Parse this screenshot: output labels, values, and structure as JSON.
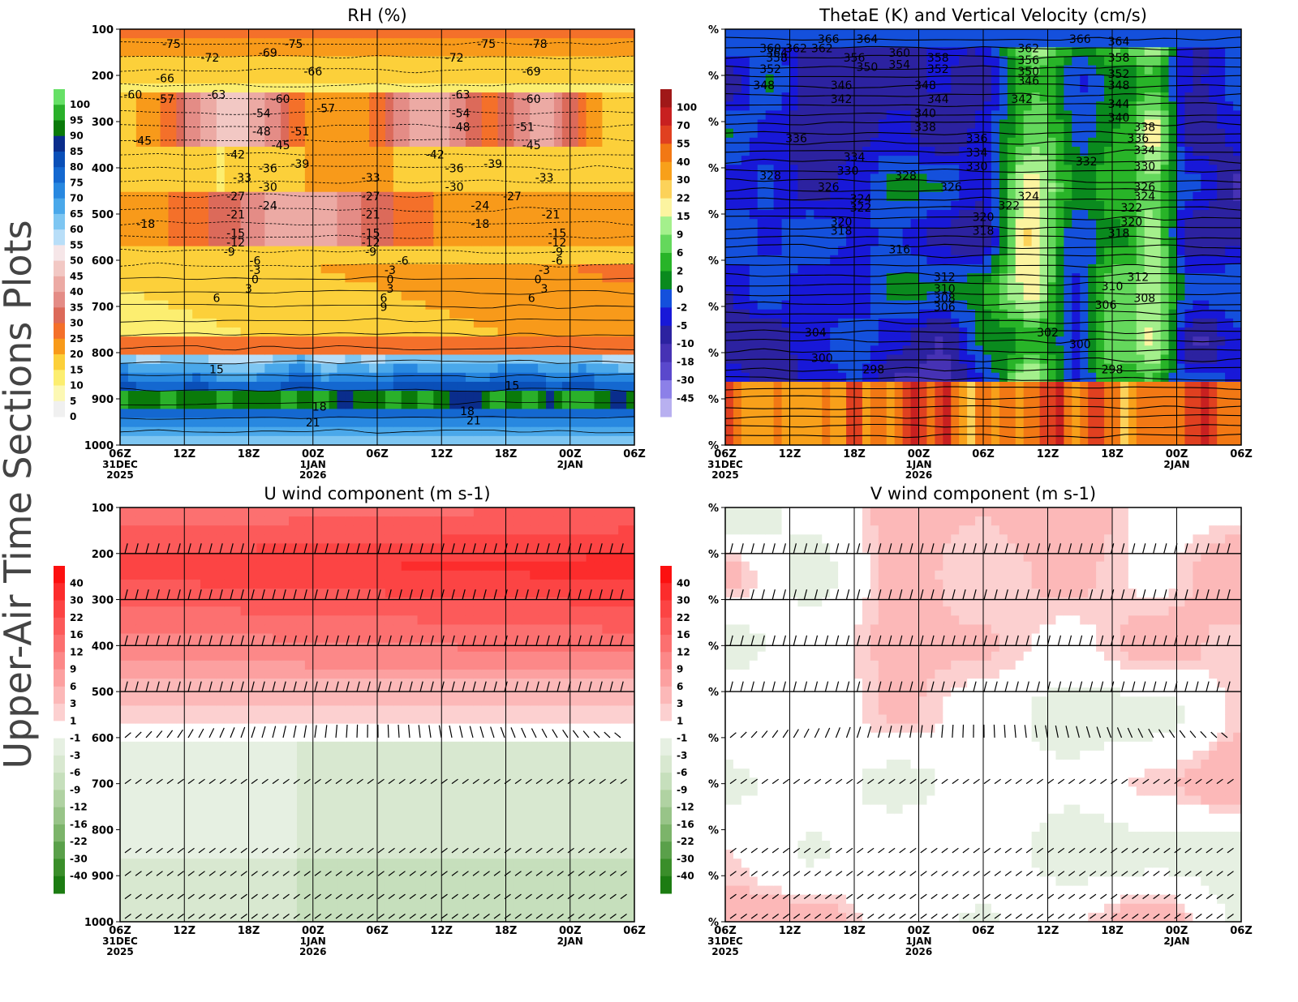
{
  "page": {
    "side_title": "Upper-Air Time Sections Plots",
    "axis_label_color": "#000000",
    "background": "#ffffff"
  },
  "time_axis": {
    "ticks": [
      {
        "label": "06Z",
        "sub1": "31DEC",
        "sub2": "2025"
      },
      {
        "label": "12Z",
        "sub1": "",
        "sub2": ""
      },
      {
        "label": "18Z",
        "sub1": "",
        "sub2": ""
      },
      {
        "label": "00Z",
        "sub1": "1JAN",
        "sub2": "2026"
      },
      {
        "label": "06Z",
        "sub1": "",
        "sub2": ""
      },
      {
        "label": "12Z",
        "sub1": "",
        "sub2": ""
      },
      {
        "label": "18Z",
        "sub1": "",
        "sub2": ""
      },
      {
        "label": "00Z",
        "sub1": "2JAN",
        "sub2": ""
      },
      {
        "label": "06Z",
        "sub1": "",
        "sub2": ""
      }
    ]
  },
  "chart_data": [
    {
      "type": "heatmap",
      "title": "RH (%)",
      "y_ticks": [
        "100",
        "200",
        "300",
        "400",
        "500",
        "600",
        "700",
        "800",
        "900",
        "1000"
      ],
      "ylim": [
        100,
        1000
      ],
      "colorbar": {
        "labels": [
          "100",
          "95",
          "90",
          "85",
          "80",
          "75",
          "70",
          "65",
          "60",
          "55",
          "50",
          "45",
          "40",
          "35",
          "30",
          "25",
          "20",
          "15",
          "10",
          "5",
          "0"
        ],
        "colors": [
          "#66e066",
          "#2ab02a",
          "#0a7a0a",
          "#0a2d8c",
          "#0a4fb8",
          "#1468d0",
          "#2888e0",
          "#4aa8ea",
          "#7ec6f2",
          "#b8def8",
          "#f6e6e8",
          "#f2c8c4",
          "#ecaaa4",
          "#e48c86",
          "#dc6a5a",
          "#f4702a",
          "#f89a1a",
          "#fcd03a",
          "#fcee70",
          "#fcf8b4",
          "#f0f0f0"
        ]
      },
      "temp_contour_labels": [
        {
          "t": 0.3,
          "p": 140,
          "v": "-75"
        },
        {
          "t": 0.9,
          "p": 170,
          "v": "-72"
        },
        {
          "t": 1.8,
          "p": 160,
          "v": "-69"
        },
        {
          "t": 2.2,
          "p": 140,
          "v": "-75"
        },
        {
          "t": 0.2,
          "p": 215,
          "v": "-66"
        },
        {
          "t": 2.5,
          "p": 200,
          "v": "-66"
        },
        {
          "t": 4.7,
          "p": 170,
          "v": "-72"
        },
        {
          "t": 5.2,
          "p": 140,
          "v": "-75"
        },
        {
          "t": 5.9,
          "p": 200,
          "v": "-69"
        },
        {
          "t": 6.0,
          "p": 140,
          "v": "-78"
        },
        {
          "t": -0.3,
          "p": 250,
          "v": "-60"
        },
        {
          "t": 0.2,
          "p": 260,
          "v": "-57"
        },
        {
          "t": 1.0,
          "p": 250,
          "v": "-63"
        },
        {
          "t": 2.0,
          "p": 260,
          "v": "-60"
        },
        {
          "t": 2.7,
          "p": 280,
          "v": "-57"
        },
        {
          "t": 4.8,
          "p": 250,
          "v": "-63"
        },
        {
          "t": 5.9,
          "p": 260,
          "v": "-60"
        },
        {
          "t": 1.7,
          "p": 290,
          "v": "-54"
        },
        {
          "t": 1.7,
          "p": 330,
          "v": "-48"
        },
        {
          "t": 2.3,
          "p": 330,
          "v": "-51"
        },
        {
          "t": 2.0,
          "p": 360,
          "v": "-45"
        },
        {
          "t": 4.8,
          "p": 290,
          "v": "-54"
        },
        {
          "t": 4.8,
          "p": 320,
          "v": "-48"
        },
        {
          "t": 5.8,
          "p": 320,
          "v": "-51"
        },
        {
          "t": 5.9,
          "p": 360,
          "v": "-45"
        },
        {
          "t": -0.15,
          "p": 350,
          "v": "-45"
        },
        {
          "t": 1.3,
          "p": 380,
          "v": "-42"
        },
        {
          "t": 4.4,
          "p": 380,
          "v": "-42"
        },
        {
          "t": 2.3,
          "p": 400,
          "v": "-39"
        },
        {
          "t": 1.8,
          "p": 410,
          "v": "-36"
        },
        {
          "t": 5.3,
          "p": 400,
          "v": "-39"
        },
        {
          "t": 4.7,
          "p": 410,
          "v": "-36"
        },
        {
          "t": 6.1,
          "p": 430,
          "v": "-33"
        },
        {
          "t": 1.4,
          "p": 430,
          "v": "-33"
        },
        {
          "t": 3.4,
          "p": 430,
          "v": "-33"
        },
        {
          "t": 1.8,
          "p": 450,
          "v": "-30"
        },
        {
          "t": 4.7,
          "p": 450,
          "v": "-30"
        },
        {
          "t": 1.3,
          "p": 470,
          "v": "-27"
        },
        {
          "t": 3.4,
          "p": 470,
          "v": "-27"
        },
        {
          "t": 5.6,
          "p": 470,
          "v": "-27"
        },
        {
          "t": 1.8,
          "p": 490,
          "v": "-24"
        },
        {
          "t": 5.1,
          "p": 490,
          "v": "-24"
        },
        {
          "t": 1.3,
          "p": 510,
          "v": "-21"
        },
        {
          "t": 3.4,
          "p": 510,
          "v": "-21"
        },
        {
          "t": 6.2,
          "p": 510,
          "v": "-21"
        },
        {
          "t": -0.1,
          "p": 530,
          "v": "-18"
        },
        {
          "t": 5.1,
          "p": 530,
          "v": "-18"
        },
        {
          "t": 1.3,
          "p": 550,
          "v": "-15"
        },
        {
          "t": 3.4,
          "p": 550,
          "v": "-15"
        },
        {
          "t": 6.3,
          "p": 550,
          "v": "-15"
        },
        {
          "t": 1.3,
          "p": 570,
          "v": "-12"
        },
        {
          "t": 3.4,
          "p": 570,
          "v": "-12"
        },
        {
          "t": 6.3,
          "p": 570,
          "v": "-12"
        },
        {
          "t": 1.2,
          "p": 590,
          "v": "-9"
        },
        {
          "t": 3.4,
          "p": 590,
          "v": "-9"
        },
        {
          "t": 6.3,
          "p": 590,
          "v": "-9"
        },
        {
          "t": 1.6,
          "p": 610,
          "v": "-6"
        },
        {
          "t": 3.9,
          "p": 610,
          "v": "-6"
        },
        {
          "t": 6.3,
          "p": 610,
          "v": "-6"
        },
        {
          "t": 1.6,
          "p": 630,
          "v": "-3"
        },
        {
          "t": 3.7,
          "p": 630,
          "v": "-3"
        },
        {
          "t": 6.1,
          "p": 630,
          "v": "-3"
        },
        {
          "t": 1.6,
          "p": 650,
          "v": "0"
        },
        {
          "t": 3.7,
          "p": 650,
          "v": "0"
        },
        {
          "t": 6.0,
          "p": 650,
          "v": "0"
        },
        {
          "t": 1.5,
          "p": 670,
          "v": "3"
        },
        {
          "t": 3.7,
          "p": 670,
          "v": "3"
        },
        {
          "t": 6.1,
          "p": 670,
          "v": "3"
        },
        {
          "t": 1.0,
          "p": 690,
          "v": "6"
        },
        {
          "t": 3.6,
          "p": 690,
          "v": "6"
        },
        {
          "t": 5.9,
          "p": 690,
          "v": "6"
        },
        {
          "t": 3.6,
          "p": 710,
          "v": "9"
        },
        {
          "t": 1.0,
          "p": 845,
          "v": "15"
        },
        {
          "t": 5.6,
          "p": 880,
          "v": "15"
        },
        {
          "t": 2.6,
          "p": 925,
          "v": "18"
        },
        {
          "t": 4.9,
          "p": 935,
          "v": "18"
        },
        {
          "t": 2.5,
          "p": 960,
          "v": "21"
        },
        {
          "t": 5.0,
          "p": 955,
          "v": "21"
        }
      ]
    },
    {
      "type": "heatmap",
      "title": "ThetaE (K) and Vertical Velocity (cm/s)",
      "y_ticks": [
        "%",
        "%",
        "%",
        "%",
        "%",
        "%",
        "%",
        "%",
        "%",
        "%"
      ],
      "ylim": [
        100,
        1000
      ],
      "colorbar": {
        "labels": [
          "100",
          "70",
          "55",
          "40",
          "30",
          "22",
          "15",
          "9",
          "6",
          "2",
          "0",
          "-2",
          "-5",
          "-10",
          "-18",
          "-30",
          "-45"
        ],
        "colors": [
          "#a01818",
          "#c82020",
          "#e04020",
          "#f27814",
          "#f8a01a",
          "#fcd25a",
          "#fcf4a0",
          "#a4f08c",
          "#64d85c",
          "#28b428",
          "#0a8a1e",
          "#1450dc",
          "#1818d8",
          "#2c22a0",
          "#4632b4",
          "#5a48cc",
          "#8c80e8",
          "#b8b0f0"
        ]
      },
      "thetae_labels": [
        {
          "t": 1.1,
          "p": 130,
          "v": "366"
        },
        {
          "t": 1.7,
          "p": 130,
          "v": "364"
        },
        {
          "t": 0.2,
          "p": 150,
          "v": "360"
        },
        {
          "t": 0.6,
          "p": 150,
          "v": "362"
        },
        {
          "t": 0.3,
          "p": 160,
          "v": "364"
        },
        {
          "t": 0.3,
          "p": 170,
          "v": "358"
        },
        {
          "t": 1.0,
          "p": 150,
          "v": "362"
        },
        {
          "t": 1.5,
          "p": 170,
          "v": "356"
        },
        {
          "t": 1.7,
          "p": 190,
          "v": "350"
        },
        {
          "t": 2.2,
          "p": 160,
          "v": "360"
        },
        {
          "t": 2.2,
          "p": 185,
          "v": "354"
        },
        {
          "t": 2.8,
          "p": 170,
          "v": "358"
        },
        {
          "t": 2.8,
          "p": 195,
          "v": "352"
        },
        {
          "t": 2.6,
          "p": 230,
          "v": "348"
        },
        {
          "t": 4.2,
          "p": 150,
          "v": "362"
        },
        {
          "t": 5.0,
          "p": 130,
          "v": "366"
        },
        {
          "t": 5.6,
          "p": 135,
          "v": "364"
        },
        {
          "t": 4.2,
          "p": 175,
          "v": "356"
        },
        {
          "t": 5.6,
          "p": 170,
          "v": "358"
        },
        {
          "t": 4.2,
          "p": 200,
          "v": "350"
        },
        {
          "t": 5.6,
          "p": 205,
          "v": "352"
        },
        {
          "t": 4.2,
          "p": 220,
          "v": "346"
        },
        {
          "t": 5.6,
          "p": 230,
          "v": "348"
        },
        {
          "t": 4.1,
          "p": 260,
          "v": "342"
        },
        {
          "t": 5.6,
          "p": 270,
          "v": "344"
        },
        {
          "t": 5.6,
          "p": 300,
          "v": "340"
        },
        {
          "t": 0.2,
          "p": 195,
          "v": "352"
        },
        {
          "t": 0.1,
          "p": 230,
          "v": "348"
        },
        {
          "t": 1.3,
          "p": 230,
          "v": "346"
        },
        {
          "t": 1.3,
          "p": 260,
          "v": "342"
        },
        {
          "t": 2.8,
          "p": 260,
          "v": "344"
        },
        {
          "t": 2.6,
          "p": 290,
          "v": "340"
        },
        {
          "t": 2.6,
          "p": 320,
          "v": "338"
        },
        {
          "t": 6.0,
          "p": 320,
          "v": "338"
        },
        {
          "t": 5.9,
          "p": 345,
          "v": "336"
        },
        {
          "t": 6.0,
          "p": 370,
          "v": "334"
        },
        {
          "t": 6.0,
          "p": 405,
          "v": "330"
        },
        {
          "t": 0.6,
          "p": 345,
          "v": "336"
        },
        {
          "t": 1.5,
          "p": 385,
          "v": "334"
        },
        {
          "t": 1.4,
          "p": 415,
          "v": "330"
        },
        {
          "t": 3.4,
          "p": 345,
          "v": "336"
        },
        {
          "t": 3.4,
          "p": 375,
          "v": "334"
        },
        {
          "t": 3.4,
          "p": 405,
          "v": "330"
        },
        {
          "t": 5.1,
          "p": 395,
          "v": "332"
        },
        {
          "t": 0.2,
          "p": 425,
          "v": "328"
        },
        {
          "t": 2.3,
          "p": 425,
          "v": "328"
        },
        {
          "t": 1.1,
          "p": 450,
          "v": "326"
        },
        {
          "t": 3.0,
          "p": 450,
          "v": "326"
        },
        {
          "t": 6.0,
          "p": 450,
          "v": "326"
        },
        {
          "t": 1.6,
          "p": 475,
          "v": "324"
        },
        {
          "t": 4.2,
          "p": 470,
          "v": "324"
        },
        {
          "t": 6.0,
          "p": 470,
          "v": "324"
        },
        {
          "t": 1.6,
          "p": 495,
          "v": "322"
        },
        {
          "t": 3.9,
          "p": 490,
          "v": "322"
        },
        {
          "t": 5.8,
          "p": 495,
          "v": "322"
        },
        {
          "t": 1.3,
          "p": 525,
          "v": "320"
        },
        {
          "t": 3.5,
          "p": 515,
          "v": "320"
        },
        {
          "t": 5.8,
          "p": 525,
          "v": "320"
        },
        {
          "t": 1.3,
          "p": 545,
          "v": "318"
        },
        {
          "t": 3.5,
          "p": 545,
          "v": "318"
        },
        {
          "t": 5.6,
          "p": 550,
          "v": "318"
        },
        {
          "t": 2.2,
          "p": 585,
          "v": "316"
        },
        {
          "t": 2.9,
          "p": 645,
          "v": "312"
        },
        {
          "t": 5.9,
          "p": 645,
          "v": "312"
        },
        {
          "t": 2.9,
          "p": 670,
          "v": "310"
        },
        {
          "t": 5.5,
          "p": 665,
          "v": "310"
        },
        {
          "t": 2.9,
          "p": 690,
          "v": "308"
        },
        {
          "t": 6.0,
          "p": 690,
          "v": "308"
        },
        {
          "t": 2.9,
          "p": 710,
          "v": "306"
        },
        {
          "t": 5.4,
          "p": 705,
          "v": "306"
        },
        {
          "t": 0.9,
          "p": 765,
          "v": "304"
        },
        {
          "t": 4.5,
          "p": 765,
          "v": "302"
        },
        {
          "t": 5.0,
          "p": 790,
          "v": "300"
        },
        {
          "t": 1.0,
          "p": 820,
          "v": "300"
        },
        {
          "t": 1.8,
          "p": 845,
          "v": "298"
        },
        {
          "t": 5.5,
          "p": 845,
          "v": "298"
        }
      ]
    },
    {
      "type": "heatmap",
      "title": "U wind component (m s-1)",
      "y_ticks": [
        "100",
        "200",
        "300",
        "400",
        "500",
        "600",
        "700",
        "800",
        "900",
        "1000"
      ],
      "ylim": [
        100,
        1000
      ],
      "colorbar": {
        "labels": [
          "40",
          "30",
          "22",
          "16",
          "12",
          "9",
          "6",
          "3",
          "1",
          "-1",
          "-3",
          "-6",
          "-9",
          "-12",
          "-16",
          "-22",
          "-30",
          "-40"
        ],
        "colors": [
          "#fc1010",
          "#fc2c2c",
          "#fc4444",
          "#fc5a5a",
          "#fc7070",
          "#fc8888",
          "#fca0a0",
          "#fcb8b8",
          "#fcd0d0",
          "#ffffff",
          "#e6f0e2",
          "#d8e8d0",
          "#c6dfbc",
          "#b0d2a2",
          "#98c488",
          "#7cb46a",
          "#5aa04a",
          "#3a8e2a",
          "#1c7c12"
        ]
      }
    },
    {
      "type": "heatmap",
      "title": "V wind component (m s-1)",
      "y_ticks": [
        "%",
        "%",
        "%",
        "%",
        "%",
        "%",
        "%",
        "%",
        "%",
        "%"
      ],
      "ylim": [
        100,
        1000
      ],
      "colorbar": {
        "labels": [
          "40",
          "30",
          "22",
          "16",
          "12",
          "9",
          "6",
          "3",
          "1",
          "-1",
          "-3",
          "-6",
          "-9",
          "-12",
          "-16",
          "-22",
          "-30",
          "-40"
        ],
        "colors": [
          "#fc1010",
          "#fc2c2c",
          "#fc4444",
          "#fc5a5a",
          "#fc7070",
          "#fc8888",
          "#fca0a0",
          "#fcb8b8",
          "#fcd0d0",
          "#ffffff",
          "#e6f0e2",
          "#d8e8d0",
          "#c6dfbc",
          "#b0d2a2",
          "#98c488",
          "#7cb46a",
          "#5aa04a",
          "#3a8e2a",
          "#1c7c12"
        ]
      }
    }
  ]
}
